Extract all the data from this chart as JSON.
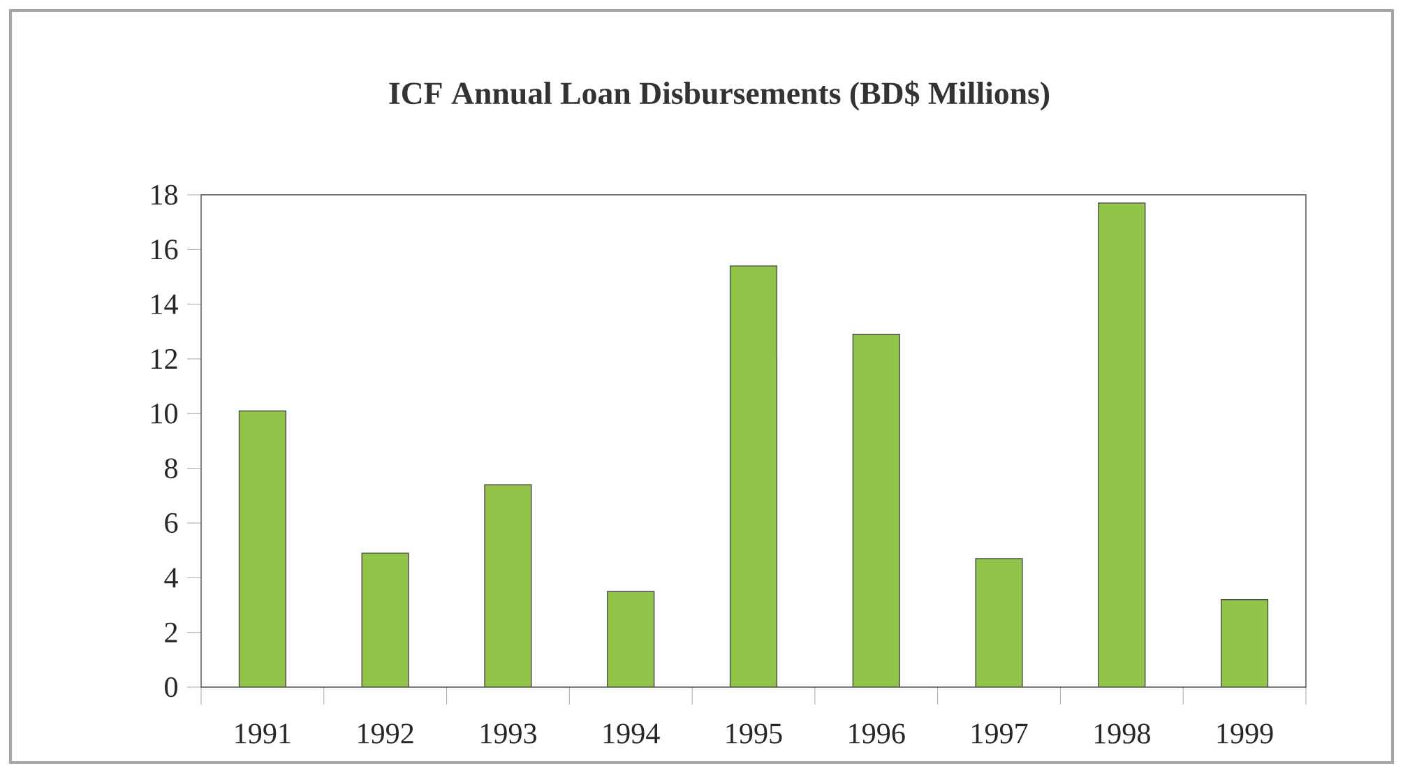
{
  "chart_data": {
    "type": "bar",
    "title": "ICF Annual Loan Disbursements (BD$ Millions)",
    "categories": [
      "1991",
      "1992",
      "1993",
      "1994",
      "1995",
      "1996",
      "1997",
      "1998",
      "1999"
    ],
    "values": [
      10.1,
      4.9,
      7.4,
      3.5,
      15.4,
      12.9,
      4.7,
      17.7,
      3.2
    ],
    "color": "#92c44a",
    "ylim": [
      0,
      18
    ],
    "yticks": [
      0,
      2,
      4,
      6,
      8,
      10,
      12,
      14,
      16,
      18
    ]
  }
}
